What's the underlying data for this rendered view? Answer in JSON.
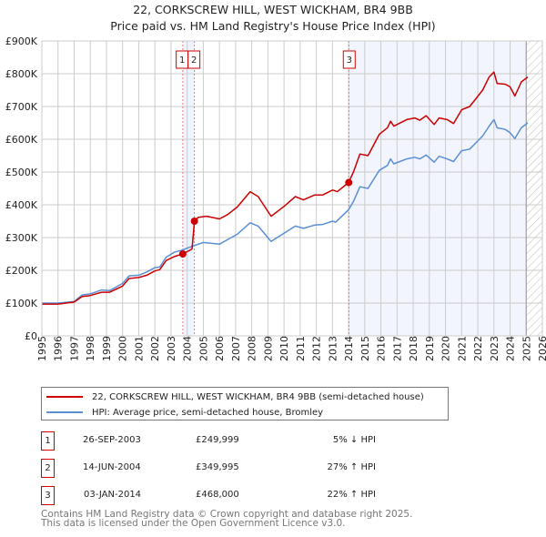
{
  "chart_data": {
    "type": "line",
    "title": "22, CORKSCREW HILL, WEST WICKHAM, BR4 9BB",
    "subtitle": "Price paid vs. HM Land Registry's House Price Index (HPI)",
    "xlim": [
      1995,
      2026
    ],
    "ylim": [
      0,
      900000
    ],
    "x_ticks": [
      "1995",
      "1996",
      "1997",
      "1998",
      "1999",
      "2000",
      "2001",
      "2002",
      "2003",
      "2004",
      "2005",
      "2006",
      "2007",
      "2008",
      "2009",
      "2010",
      "2011",
      "2012",
      "2013",
      "2014",
      "2015",
      "2016",
      "2017",
      "2018",
      "2019",
      "2020",
      "2021",
      "2022",
      "2023",
      "2024",
      "2025",
      "2026"
    ],
    "y_ticks": [
      {
        "v": 0,
        "label": "£0"
      },
      {
        "v": 100000,
        "label": "£100K"
      },
      {
        "v": 200000,
        "label": "£200K"
      },
      {
        "v": 300000,
        "label": "£300K"
      },
      {
        "v": 400000,
        "label": "£400K"
      },
      {
        "v": 500000,
        "label": "£500K"
      },
      {
        "v": 600000,
        "label": "£600K"
      },
      {
        "v": 700000,
        "label": "£700K"
      },
      {
        "v": 800000,
        "label": "£800K"
      },
      {
        "v": 900000,
        "label": "£900K"
      }
    ],
    "grid": true,
    "forecast_from": 2025.0,
    "series": [
      {
        "name": "22, CORKSCREW HILL, WEST WICKHAM, BR4 9BB (semi-detached house)",
        "color": "#cc0000",
        "x": [
          1995,
          1996,
          1997,
          1997.5,
          1998,
          1998.7,
          1999.2,
          2000,
          2000.4,
          2001,
          2001.5,
          2002,
          2002.3,
          2002.7,
          2003.2,
          2003.73,
          2004.3,
          2004.45,
          2004.7,
          2005.2,
          2006,
          2006.5,
          2007.1,
          2007.9,
          2008.4,
          2009.2,
          2010,
          2010.7,
          2011.2,
          2011.9,
          2012.4,
          2013,
          2013.3,
          2014.0,
          2014.3,
          2014.7,
          2015.2,
          2015.9,
          2016.4,
          2016.6,
          2016.8,
          2017.6,
          2018.1,
          2018.4,
          2018.8,
          2019.3,
          2019.6,
          2020.1,
          2020.5,
          2021,
          2021.5,
          2022.3,
          2022.7,
          2023,
          2023.2,
          2023.7,
          2024,
          2024.3,
          2024.7,
          2025.1
        ],
        "y": [
          97000,
          97000,
          103000,
          120000,
          123000,
          133000,
          133000,
          152000,
          175000,
          178000,
          185000,
          198000,
          202000,
          230000,
          242000,
          250000,
          265000,
          350000,
          362000,
          365000,
          357000,
          370000,
          393000,
          440000,
          425000,
          365000,
          395000,
          425000,
          415000,
          430000,
          430000,
          445000,
          440000,
          468000,
          500000,
          555000,
          550000,
          615000,
          635000,
          655000,
          640000,
          660000,
          665000,
          658000,
          672000,
          645000,
          665000,
          660000,
          648000,
          690000,
          700000,
          750000,
          790000,
          805000,
          770000,
          768000,
          760000,
          732000,
          775000,
          790000
        ]
      },
      {
        "name": "HPI: Average price, semi-detached house, Bromley",
        "color": "#5b8fd4",
        "x": [
          1995,
          1996,
          1997,
          1997.5,
          1998,
          1998.7,
          1999.2,
          2000,
          2000.4,
          2001,
          2001.5,
          2002,
          2002.3,
          2002.7,
          2003.2,
          2003.7,
          2004.4,
          2005,
          2006,
          2007.1,
          2007.9,
          2008.4,
          2009.2,
          2010.7,
          2011.2,
          2011.9,
          2012.4,
          2013,
          2013.2,
          2014,
          2014.3,
          2014.7,
          2015.2,
          2015.9,
          2016.4,
          2016.6,
          2016.8,
          2017.6,
          2018.1,
          2018.4,
          2018.8,
          2019.3,
          2019.6,
          2020.1,
          2020.5,
          2021,
          2021.5,
          2022.3,
          2022.7,
          2023,
          2023.2,
          2023.7,
          2024,
          2024.3,
          2024.7,
          2025.1
        ],
        "y": [
          100000,
          100000,
          105000,
          125000,
          128000,
          140000,
          138000,
          160000,
          183000,
          185000,
          195000,
          208000,
          210000,
          240000,
          255000,
          262000,
          275000,
          285000,
          280000,
          310000,
          345000,
          335000,
          288000,
          335000,
          328000,
          338000,
          340000,
          350000,
          347000,
          385000,
          410000,
          455000,
          450000,
          505000,
          520000,
          540000,
          525000,
          540000,
          545000,
          540000,
          552000,
          530000,
          548000,
          540000,
          532000,
          565000,
          570000,
          610000,
          640000,
          660000,
          635000,
          630000,
          620000,
          602000,
          635000,
          650000
        ]
      }
    ],
    "sales": [
      {
        "id": "1",
        "x": 2003.73,
        "y": 249999
      },
      {
        "id": "2",
        "x": 2004.45,
        "y": 349995
      },
      {
        "id": "3",
        "x": 2014.01,
        "y": 468000
      }
    ]
  },
  "legend": {
    "property": "22, CORKSCREW HILL, WEST WICKHAM, BR4 9BB (semi-detached house)",
    "hpi": "HPI: Average price, semi-detached house, Bromley"
  },
  "transactions": [
    {
      "id": "1",
      "date": "26-SEP-2003",
      "price": "£249,999",
      "hpi": "5% ↓ HPI"
    },
    {
      "id": "2",
      "date": "14-JUN-2004",
      "price": "£349,995",
      "hpi": "27% ↑ HPI"
    },
    {
      "id": "3",
      "date": "03-JAN-2014",
      "price": "£468,000",
      "hpi": "22% ↑ HPI"
    }
  ],
  "footer": {
    "line1": "Contains HM Land Registry data © Crown copyright and database right 2025.",
    "line2": "This data is licensed under the Open Government Licence v3.0."
  }
}
